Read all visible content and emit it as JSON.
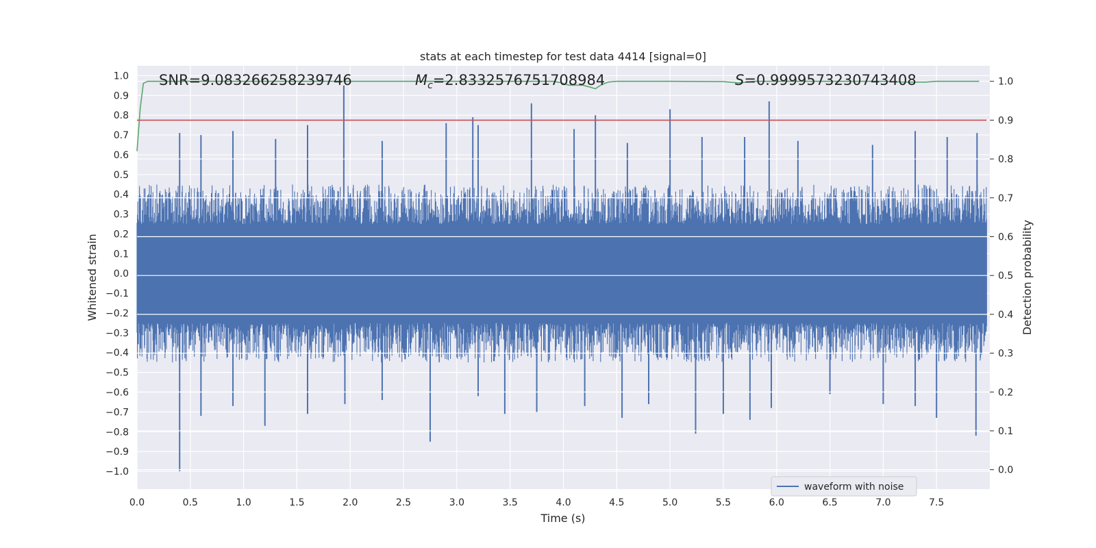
{
  "chart_data": {
    "type": "line",
    "title": "stats at each timestep for test data 4414 [signal=0]",
    "xlabel": "Time (s)",
    "ylabel_left": "Whitened strain",
    "ylabel_right": "Detection probability",
    "xlim": [
      0.0,
      8.0
    ],
    "ylim_left": [
      -1.09,
      1.05
    ],
    "ylim_right": [
      -0.05,
      1.04
    ],
    "x_ticks": [
      "0.0",
      "0.5",
      "1.0",
      "1.5",
      "2.0",
      "2.5",
      "3.0",
      "3.5",
      "4.0",
      "4.5",
      "5.0",
      "5.5",
      "6.0",
      "6.5",
      "7.0",
      "7.5"
    ],
    "y_ticks_left": [
      "1.0",
      "0.9",
      "0.8",
      "0.7",
      "0.6",
      "0.5",
      "0.4",
      "0.3",
      "0.2",
      "0.1",
      "0.0",
      "−0.1",
      "−0.2",
      "−0.3",
      "−0.4",
      "−0.5",
      "−0.6",
      "−0.7",
      "−0.8",
      "−0.9",
      "−1.0"
    ],
    "y_ticks_right": [
      "1.0",
      "0.9",
      "0.8",
      "0.7",
      "0.6",
      "0.5",
      "0.4",
      "0.3",
      "0.2",
      "0.1",
      "0.0"
    ],
    "grid": true,
    "legend_position": "lower-right",
    "annotations": {
      "snr": "SNR=9.083266258239746",
      "mc_symbol": "M",
      "mc_sub": "c",
      "mc_value": "=2.8332576751708984",
      "s_symbol": "S",
      "s_value": "=0.9999573230743408"
    },
    "series": [
      {
        "name": "waveform with noise",
        "axis": "left",
        "color": "#4c72b0",
        "spikes_up": [
          [
            0.4,
            0.71
          ],
          [
            0.6,
            0.7
          ],
          [
            0.9,
            0.72
          ],
          [
            1.3,
            0.68
          ],
          [
            1.6,
            0.75
          ],
          [
            1.94,
            0.95
          ],
          [
            2.3,
            0.67
          ],
          [
            2.9,
            0.76
          ],
          [
            3.15,
            0.79
          ],
          [
            3.2,
            0.75
          ],
          [
            3.7,
            0.86
          ],
          [
            4.1,
            0.73
          ],
          [
            4.3,
            0.8
          ],
          [
            4.6,
            0.66
          ],
          [
            5.0,
            0.83
          ],
          [
            5.3,
            0.69
          ],
          [
            5.7,
            0.69
          ],
          [
            5.93,
            0.87
          ],
          [
            6.2,
            0.67
          ],
          [
            6.9,
            0.65
          ],
          [
            7.3,
            0.72
          ],
          [
            7.6,
            0.69
          ],
          [
            7.88,
            0.71
          ]
        ],
        "spikes_down": [
          [
            0.4,
            -1.0
          ],
          [
            0.6,
            -0.72
          ],
          [
            0.9,
            -0.67
          ],
          [
            1.2,
            -0.77
          ],
          [
            1.6,
            -0.71
          ],
          [
            1.95,
            -0.66
          ],
          [
            2.3,
            -0.64
          ],
          [
            2.75,
            -0.85
          ],
          [
            3.2,
            -0.62
          ],
          [
            3.45,
            -0.71
          ],
          [
            3.75,
            -0.7
          ],
          [
            4.2,
            -0.67
          ],
          [
            4.55,
            -0.73
          ],
          [
            4.8,
            -0.66
          ],
          [
            5.24,
            -0.81
          ],
          [
            5.5,
            -0.71
          ],
          [
            5.75,
            -0.74
          ],
          [
            5.95,
            -0.68
          ],
          [
            6.5,
            -0.61
          ],
          [
            7.0,
            -0.66
          ],
          [
            7.3,
            -0.67
          ],
          [
            7.5,
            -0.73
          ],
          [
            7.87,
            -0.82
          ]
        ]
      },
      {
        "name": "",
        "axis": "right",
        "color": "#55a868",
        "x": [
          0.0,
          0.03,
          0.06,
          0.1,
          0.15,
          0.3,
          1.0,
          2.0,
          3.0,
          3.9,
          3.97,
          4.05,
          4.12,
          4.18,
          4.25,
          4.3,
          4.35,
          4.42,
          4.5,
          4.7,
          5.0,
          5.5,
          5.65,
          5.8,
          6.5,
          7.0,
          7.2,
          7.4,
          7.5,
          7.9
        ],
        "y": [
          0.82,
          0.93,
          0.995,
          1.0,
          1.0,
          1.0,
          1.0,
          1.0,
          1.0,
          1.0,
          0.997,
          0.99,
          0.99,
          0.99,
          0.985,
          0.981,
          0.99,
          0.998,
          1.0,
          1.0,
          1.0,
          0.999,
          0.996,
          1.0,
          1.0,
          1.0,
          0.998,
          0.998,
          1.0,
          1.0
        ]
      },
      {
        "name": "",
        "axis": "right",
        "color": "#c44e52",
        "x": [
          0.0,
          7.97
        ],
        "y": [
          0.9,
          0.9
        ]
      }
    ]
  }
}
